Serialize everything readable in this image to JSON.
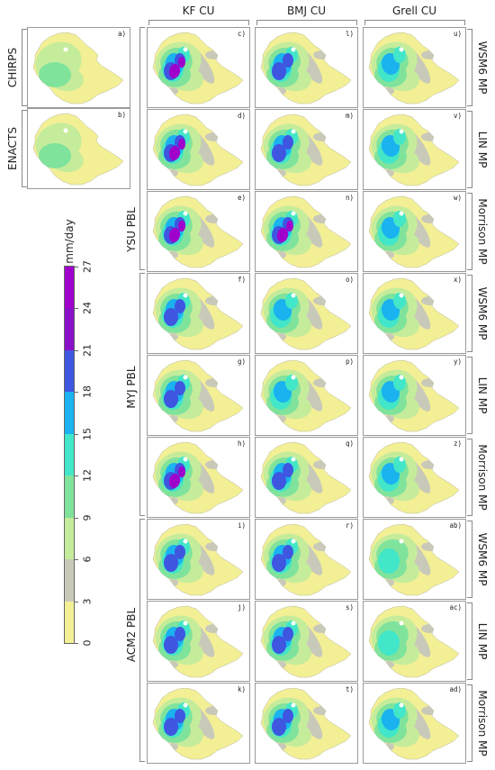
{
  "columns": [
    "KF CU",
    "BMJ CU",
    "Grell CU"
  ],
  "obs_labels": [
    "CHIRPS",
    "ENACTS"
  ],
  "obs_tags": [
    "a)",
    "b)"
  ],
  "pbl_labels": [
    "YSU PBL",
    "MYJ PBL",
    "ACM2 PBL"
  ],
  "mp_labels": [
    "WSM6 MP",
    "LIN MP",
    "Morrison MP",
    "WSM6 MP",
    "LIN MP",
    "Morrison MP",
    "WSM6 MP",
    "LIN MP",
    "Morrison MP"
  ],
  "panel_tags": [
    [
      "c)",
      "l)",
      "u)"
    ],
    [
      "d)",
      "m)",
      "v)"
    ],
    [
      "e)",
      "n)",
      "w)"
    ],
    [
      "f)",
      "o)",
      "x)"
    ],
    [
      "g)",
      "p)",
      "y)"
    ],
    [
      "h)",
      "q)",
      "z)"
    ],
    [
      "i)",
      "r)",
      "ab)"
    ],
    [
      "j)",
      "s)",
      "ac)"
    ],
    [
      "k)",
      "t)",
      "ad)"
    ]
  ],
  "colorbar": {
    "unit": "mm/day",
    "ticks": [
      "0",
      "3",
      "6",
      "9",
      "12",
      "15",
      "18",
      "21",
      "24",
      "27"
    ],
    "colors": [
      "#f3ef95",
      "#c9c9b9",
      "#c5ec9b",
      "#7fe39c",
      "#42e6c8",
      "#1ab2ef",
      "#3e56e0",
      "#8a10c8",
      "#a000cc"
    ]
  }
}
